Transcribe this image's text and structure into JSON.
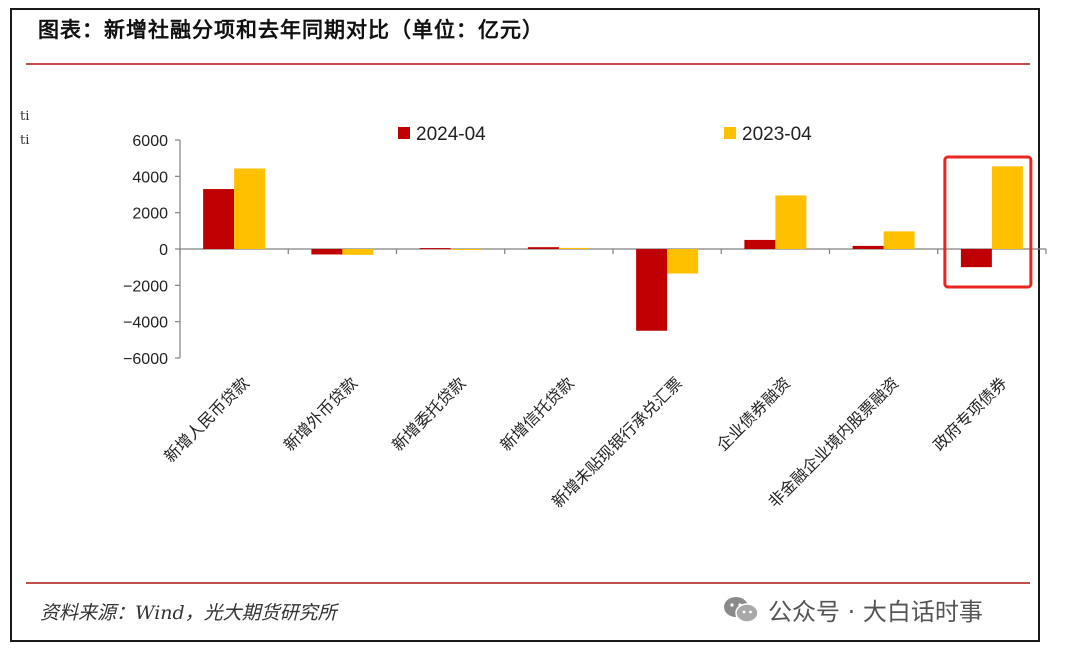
{
  "header": {
    "title": "图表：新增社融分项和去年同期对比（单位：亿元）"
  },
  "footer": {
    "source": "资料来源：Wind，光大期货研究所",
    "watermark": "公众号 · 大白话时事"
  },
  "colors": {
    "series_2024": "#c00000",
    "series_2023": "#ffc000",
    "rule": "#c0504d",
    "highlight_box": "#e8251f"
  },
  "icons": {
    "watermark_logo": "wechat-icon"
  },
  "highlight": {
    "category": "政府专项债券"
  },
  "chart_data": {
    "type": "bar",
    "title": "",
    "xlabel": "",
    "ylabel": "",
    "stray_glyphs": [
      "ti",
      "ti"
    ],
    "ylim": [
      -6000,
      6000
    ],
    "yticks": [
      6000,
      4000,
      2000,
      0,
      -2000,
      -4000,
      -6000
    ],
    "ytick_labels": [
      "6000",
      "4000",
      "2000",
      "0",
      "−2000",
      "−4000",
      "−6000"
    ],
    "grid": false,
    "legend": "top",
    "categories": [
      "新增人民币贷款",
      "新增外币贷款",
      "新增委托贷款",
      "新增信托贷款",
      "新增未贴现银行承兑汇票",
      "企业债券融资",
      "非金融企业境内股票融资",
      "政府专项债券"
    ],
    "series": [
      {
        "name": "2024-04",
        "color": "#c00000",
        "values": [
          3300,
          -300,
          50,
          100,
          -4500,
          500,
          170,
          -1000
        ]
      },
      {
        "name": "2023-04",
        "color": "#ffc000",
        "values": [
          4431,
          -320,
          -20,
          60,
          -1350,
          2950,
          970,
          4550
        ]
      }
    ]
  }
}
